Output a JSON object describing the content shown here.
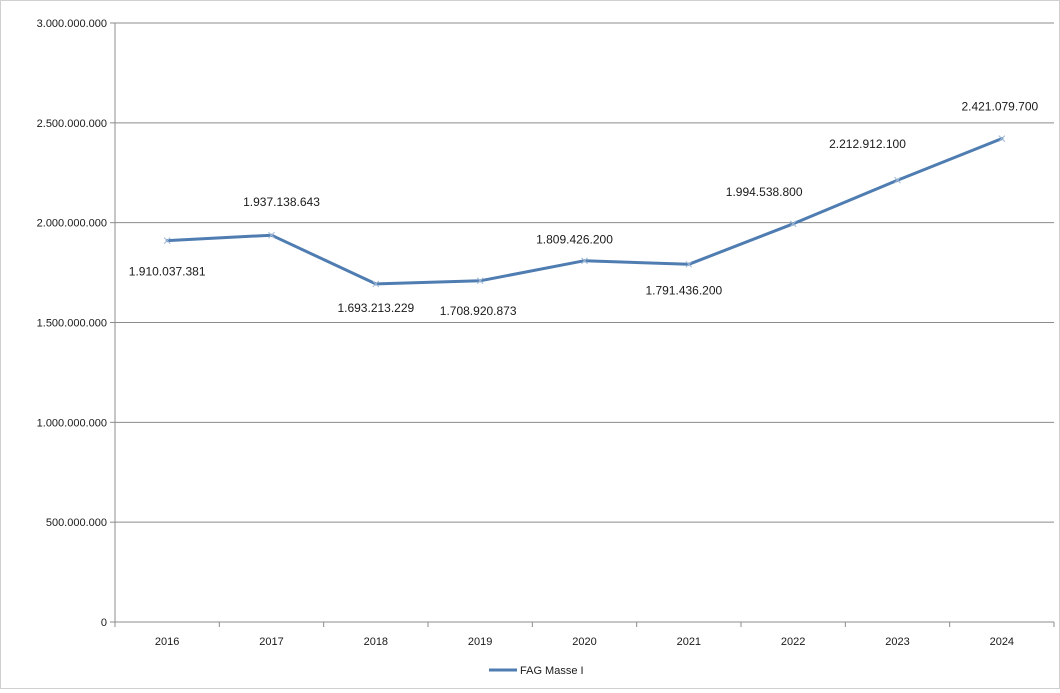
{
  "chart_data": {
    "type": "line",
    "title": "",
    "xlabel": "",
    "ylabel": "",
    "categories": [
      "2016",
      "2017",
      "2018",
      "2019",
      "2020",
      "2021",
      "2022",
      "2023",
      "2024"
    ],
    "series": [
      {
        "name": "FAG Masse I",
        "color": "#4f7db1",
        "values": [
          1910037381,
          1937138643,
          1693213229,
          1708920873,
          1809426200,
          1791436200,
          1994538800,
          2212912100,
          2421079700
        ],
        "labels": [
          "1.910.037.381",
          "1.937.138.643",
          "1.693.213.229",
          "1.708.920.873",
          "1.809.426.200",
          "1.791.436.200",
          "1.994.538.800",
          "2.212.912.100",
          "2.421.079.700"
        ]
      }
    ],
    "ylim": [
      0,
      3000000000
    ],
    "y_ticks": [
      0,
      500000000,
      1000000000,
      1500000000,
      2000000000,
      2500000000,
      3000000000
    ],
    "y_tick_labels": [
      "0",
      "500.000.000",
      "1.000.000.000",
      "1.500.000.000",
      "2.000.000.000",
      "2.500.000.000",
      "3.000.000.000"
    ],
    "grid": true,
    "legend_position": "bottom",
    "gridline_color": "#8c8c8c"
  }
}
